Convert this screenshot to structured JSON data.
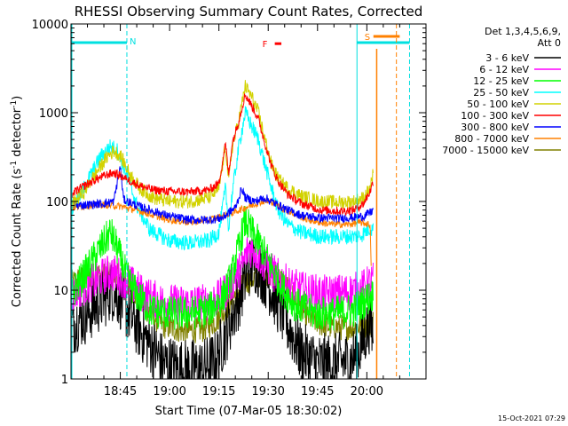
{
  "chart_data": {
    "type": "line",
    "title": "RHESSI Observing Summary Count Rates, Corrected",
    "xlabel": "Start Time (07-Mar-05 18:30:02)",
    "ylabel_main": "Corrected Count Rate (s",
    "ylabel_exp1": "-1",
    "ylabel_mid": " detector",
    "ylabel_exp2": "-1",
    "ylabel_end": ")",
    "yscale": "log",
    "ylim": [
      1,
      10000
    ],
    "xlim_minutes": [
      0,
      108
    ],
    "x_unit": "minutes after 18:30:02",
    "y_ticks": [
      {
        "value": 1,
        "label": "1"
      },
      {
        "value": 10,
        "label": "10"
      },
      {
        "value": 100,
        "label": "100"
      },
      {
        "value": 1000,
        "label": "1000"
      },
      {
        "value": 10000,
        "label": "10000"
      }
    ],
    "x_ticks": [
      {
        "min": 15,
        "label": "18:45"
      },
      {
        "min": 30,
        "label": "19:00"
      },
      {
        "min": 45,
        "label": "19:15"
      },
      {
        "min": 60,
        "label": "19:30"
      },
      {
        "min": 75,
        "label": "19:45"
      },
      {
        "min": 90,
        "label": "20:00"
      }
    ],
    "legend": {
      "placement": "right",
      "header_line1": "Det 1,3,4,5,6,9,",
      "header_line2": "Att 0",
      "entries": [
        {
          "label": "3 - 6 keV",
          "color": "#000000"
        },
        {
          "label": "6 - 12 keV",
          "color": "#ff00ff"
        },
        {
          "label": "12 - 25 keV",
          "color": "#00ff00"
        },
        {
          "label": "25 - 50 keV",
          "color": "#00ffff"
        },
        {
          "label": "50 - 100 keV",
          "color": "#d2d200"
        },
        {
          "label": "100 - 300 keV",
          "color": "#ff0000"
        },
        {
          "label": "300 - 800 keV",
          "color": "#0000ff"
        },
        {
          "label": "800 - 7000 keV",
          "color": "#ff8000"
        },
        {
          "label": "7000 - 15000 keV",
          "color": "#808000"
        }
      ]
    },
    "annotations": {
      "night_label": "N",
      "saa_label": "S",
      "flare_label": "F",
      "night_color": "#00e0e0",
      "saa_color": "#ff8000",
      "flare_color": "#ff0000",
      "night_bar_min": [
        0,
        17
      ],
      "night_dashed_min": 17,
      "night2_bar_min": [
        87,
        103
      ],
      "night2_solid_min": 87,
      "night2_dashed_min": 103,
      "saa_bar_min": [
        92,
        100
      ],
      "saa_solid_min": 93,
      "saa_dashed_min": 99,
      "flare_bar_min": [
        62,
        64
      ],
      "flare_bar_value": 6000
    },
    "series": [
      {
        "name": "3 - 6 keV",
        "color": "#000000",
        "points": [
          [
            0,
            4
          ],
          [
            5,
            5.5
          ],
          [
            10,
            8
          ],
          [
            12,
            10
          ],
          [
            14,
            9
          ],
          [
            17,
            6
          ],
          [
            20,
            4
          ],
          [
            24,
            2.5
          ],
          [
            28,
            1.5
          ],
          [
            34,
            1.3
          ],
          [
            40,
            1.3
          ],
          [
            44,
            1.6
          ],
          [
            48,
            4
          ],
          [
            52,
            10
          ],
          [
            54,
            18
          ],
          [
            56,
            20
          ],
          [
            58,
            16
          ],
          [
            60,
            12
          ],
          [
            63,
            7
          ],
          [
            66,
            4
          ],
          [
            70,
            2
          ],
          [
            75,
            1.5
          ],
          [
            80,
            1.5
          ],
          [
            85,
            1.6
          ],
          [
            88,
            2.2
          ],
          [
            91,
            4.5
          ],
          [
            92,
            3
          ]
        ]
      },
      {
        "name": "6 - 12 keV",
        "color": "#ff00ff",
        "points": [
          [
            0,
            9
          ],
          [
            4,
            11
          ],
          [
            8,
            13
          ],
          [
            12,
            16
          ],
          [
            14,
            15
          ],
          [
            18,
            12
          ],
          [
            22,
            9
          ],
          [
            27,
            7.5
          ],
          [
            33,
            7
          ],
          [
            40,
            7.2
          ],
          [
            45,
            8
          ],
          [
            48,
            11
          ],
          [
            52,
            18
          ],
          [
            54,
            30
          ],
          [
            56,
            28
          ],
          [
            58,
            22
          ],
          [
            60,
            18
          ],
          [
            63,
            14
          ],
          [
            67,
            11
          ],
          [
            72,
            9.5
          ],
          [
            78,
            9
          ],
          [
            84,
            9.5
          ],
          [
            88,
            10
          ],
          [
            91,
            12
          ],
          [
            92,
            13
          ]
        ]
      },
      {
        "name": "12 - 25 keV",
        "color": "#00ff00",
        "points": [
          [
            0,
            9
          ],
          [
            3,
            13
          ],
          [
            6,
            20
          ],
          [
            9,
            30
          ],
          [
            12,
            45
          ],
          [
            14,
            30
          ],
          [
            17,
            14
          ],
          [
            20,
            9
          ],
          [
            24,
            6
          ],
          [
            30,
            5.5
          ],
          [
            36,
            5.5
          ],
          [
            42,
            6
          ],
          [
            46,
            8
          ],
          [
            49,
            15
          ],
          [
            51,
            30
          ],
          [
            53,
            60
          ],
          [
            55,
            45
          ],
          [
            58,
            30
          ],
          [
            61,
            18
          ],
          [
            64,
            11
          ],
          [
            68,
            7
          ],
          [
            74,
            5.5
          ],
          [
            80,
            5.5
          ],
          [
            86,
            6
          ],
          [
            90,
            8
          ],
          [
            92,
            9
          ]
        ]
      },
      {
        "name": "25 - 50 keV",
        "color": "#00ffff",
        "points": [
          [
            0,
            80
          ],
          [
            3,
            120
          ],
          [
            6,
            200
          ],
          [
            9,
            320
          ],
          [
            12,
            420
          ],
          [
            14,
            380
          ],
          [
            17,
            200
          ],
          [
            20,
            90
          ],
          [
            24,
            48
          ],
          [
            30,
            36
          ],
          [
            36,
            34
          ],
          [
            42,
            36
          ],
          [
            45,
            45
          ],
          [
            47,
            140
          ],
          [
            48,
            50
          ],
          [
            49,
            120
          ],
          [
            51,
            400
          ],
          [
            53,
            1000
          ],
          [
            55,
            700
          ],
          [
            57,
            500
          ],
          [
            59,
            260
          ],
          [
            61,
            140
          ],
          [
            63,
            80
          ],
          [
            66,
            55
          ],
          [
            70,
            45
          ],
          [
            76,
            40
          ],
          [
            82,
            40
          ],
          [
            88,
            41
          ],
          [
            91,
            50
          ],
          [
            92,
            48
          ]
        ]
      },
      {
        "name": "50 - 100 keV",
        "color": "#d2d200",
        "points": [
          [
            0,
            90
          ],
          [
            4,
            130
          ],
          [
            8,
            220
          ],
          [
            11,
            320
          ],
          [
            13,
            370
          ],
          [
            15,
            330
          ],
          [
            18,
            200
          ],
          [
            21,
            140
          ],
          [
            25,
            110
          ],
          [
            30,
            100
          ],
          [
            36,
            100
          ],
          [
            42,
            110
          ],
          [
            45,
            140
          ],
          [
            47,
            420
          ],
          [
            48,
            170
          ],
          [
            49,
            400
          ],
          [
            51,
            800
          ],
          [
            53,
            2000
          ],
          [
            55,
            1500
          ],
          [
            57,
            1000
          ],
          [
            59,
            500
          ],
          [
            61,
            260
          ],
          [
            63,
            180
          ],
          [
            66,
            140
          ],
          [
            70,
            115
          ],
          [
            76,
            100
          ],
          [
            82,
            98
          ],
          [
            86,
            100
          ],
          [
            89,
            110
          ],
          [
            91,
            140
          ],
          [
            92,
            210
          ]
        ]
      },
      {
        "name": "100 - 300 keV",
        "color": "#ff0000",
        "points": [
          [
            0,
            120
          ],
          [
            4,
            150
          ],
          [
            8,
            180
          ],
          [
            11,
            200
          ],
          [
            13,
            210
          ],
          [
            15,
            195
          ],
          [
            18,
            170
          ],
          [
            21,
            150
          ],
          [
            25,
            135
          ],
          [
            30,
            130
          ],
          [
            36,
            128
          ],
          [
            42,
            135
          ],
          [
            45,
            160
          ],
          [
            47,
            450
          ],
          [
            48,
            200
          ],
          [
            49,
            450
          ],
          [
            51,
            800
          ],
          [
            53,
            1600
          ],
          [
            55,
            1200
          ],
          [
            57,
            850
          ],
          [
            59,
            450
          ],
          [
            61,
            250
          ],
          [
            63,
            170
          ],
          [
            66,
            120
          ],
          [
            70,
            95
          ],
          [
            76,
            80
          ],
          [
            82,
            78
          ],
          [
            86,
            80
          ],
          [
            89,
            95
          ],
          [
            91,
            130
          ],
          [
            92,
            170
          ]
        ]
      },
      {
        "name": "300 - 800 keV",
        "color": "#0000ff",
        "points": [
          [
            0,
            90
          ],
          [
            5,
            92
          ],
          [
            10,
            95
          ],
          [
            13,
            100
          ],
          [
            15,
            250
          ],
          [
            16,
            105
          ],
          [
            20,
            90
          ],
          [
            25,
            78
          ],
          [
            30,
            68
          ],
          [
            36,
            62
          ],
          [
            42,
            62
          ],
          [
            46,
            65
          ],
          [
            48,
            75
          ],
          [
            50,
            85
          ],
          [
            52,
            140
          ],
          [
            53,
            110
          ],
          [
            56,
            100
          ],
          [
            59,
            110
          ],
          [
            62,
            95
          ],
          [
            66,
            80
          ],
          [
            70,
            70
          ],
          [
            76,
            65
          ],
          [
            82,
            65
          ],
          [
            86,
            66
          ],
          [
            89,
            68
          ],
          [
            91,
            75
          ],
          [
            92,
            80
          ]
        ]
      },
      {
        "name": "800 - 7000 keV",
        "color": "#ff8000",
        "points": [
          [
            0,
            85
          ],
          [
            5,
            90
          ],
          [
            10,
            92
          ],
          [
            15,
            88
          ],
          [
            20,
            80
          ],
          [
            25,
            70
          ],
          [
            30,
            62
          ],
          [
            36,
            58
          ],
          [
            42,
            62
          ],
          [
            48,
            72
          ],
          [
            54,
            88
          ],
          [
            58,
            100
          ],
          [
            61,
            100
          ],
          [
            64,
            85
          ],
          [
            68,
            72
          ],
          [
            72,
            62
          ],
          [
            78,
            56
          ],
          [
            84,
            55
          ],
          [
            88,
            58
          ],
          [
            91,
            55
          ],
          [
            91.4,
            13
          ]
        ]
      },
      {
        "name": "7000 - 15000 keV",
        "color": "#808000",
        "points": [
          [
            0,
            12
          ],
          [
            4,
            14
          ],
          [
            8,
            15
          ],
          [
            12,
            15
          ],
          [
            15,
            14
          ],
          [
            18,
            11
          ],
          [
            21,
            8
          ],
          [
            24,
            5.5
          ],
          [
            28,
            4
          ],
          [
            34,
            3.5
          ],
          [
            40,
            3.6
          ],
          [
            44,
            4.5
          ],
          [
            47,
            6
          ],
          [
            50,
            9
          ],
          [
            53,
            12
          ],
          [
            56,
            14
          ],
          [
            59,
            16
          ],
          [
            62,
            15
          ],
          [
            65,
            12
          ],
          [
            68,
            8
          ],
          [
            72,
            5
          ],
          [
            77,
            4
          ],
          [
            82,
            3.8
          ],
          [
            86,
            3.8
          ],
          [
            89,
            4
          ],
          [
            92,
            4.5
          ]
        ]
      }
    ]
  },
  "timestamp": "15-Oct-2021 07:29"
}
